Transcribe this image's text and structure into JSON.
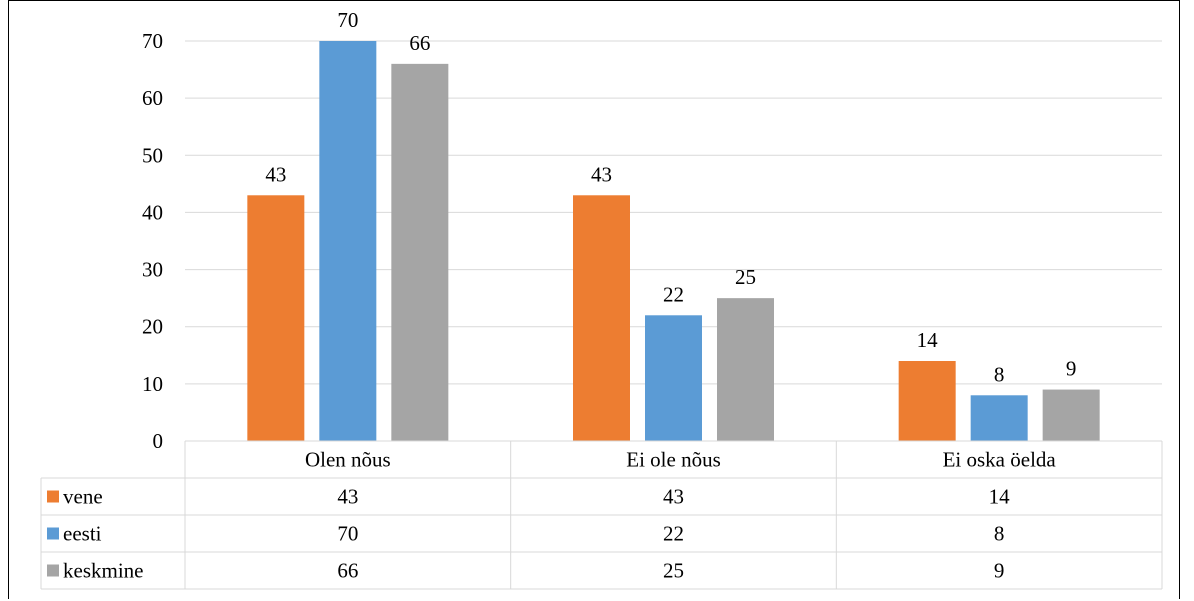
{
  "chart_data": {
    "type": "bar",
    "categories": [
      "Olen nõus",
      "Ei ole nõus",
      "Ei oska öelda"
    ],
    "series": [
      {
        "name": "vene",
        "values": [
          43,
          43,
          14
        ],
        "color": "#ED7D31"
      },
      {
        "name": "eesti",
        "values": [
          70,
          22,
          8
        ],
        "color": "#5B9BD5"
      },
      {
        "name": "keskmine",
        "values": [
          66,
          25,
          9
        ],
        "color": "#A5A5A5"
      }
    ],
    "ylim": [
      0,
      70
    ],
    "yticks": [
      0,
      10,
      20,
      30,
      40,
      50,
      60,
      70
    ],
    "grid": true,
    "data_labels": true,
    "legend": "data-table-below"
  }
}
